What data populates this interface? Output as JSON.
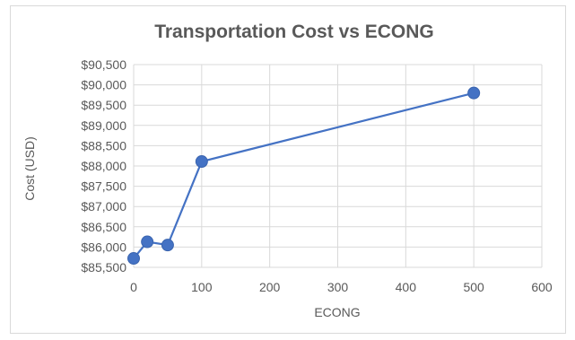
{
  "chart_data": {
    "type": "scatter",
    "title": "Transportation Cost vs ECONG",
    "xlabel": "ECONG",
    "ylabel": "Cost (USD)",
    "xlim": [
      0,
      600
    ],
    "ylim": [
      85500,
      90500
    ],
    "x_ticks": [
      0,
      100,
      200,
      300,
      400,
      500,
      600
    ],
    "y_ticks": [
      85500,
      86000,
      86500,
      87000,
      87500,
      88000,
      88500,
      89000,
      89500,
      90000,
      90500
    ],
    "x_tick_labels": [
      "0",
      "100",
      "200",
      "300",
      "400",
      "500",
      "600"
    ],
    "y_tick_labels": [
      "$85,500",
      "$86,000",
      "$86,500",
      "$87,000",
      "$87,500",
      "$88,000",
      "$88,500",
      "$89,000",
      "$89,500",
      "$90,000",
      "$90,500"
    ],
    "grid": true,
    "legend": "none",
    "colors": {
      "series": "#4472c4",
      "grid": "#d9d9d9",
      "text": "#595959"
    },
    "series": [
      {
        "x": [
          0,
          20,
          50,
          100,
          500
        ],
        "y": [
          85720,
          86130,
          86050,
          88110,
          89800
        ]
      }
    ]
  }
}
